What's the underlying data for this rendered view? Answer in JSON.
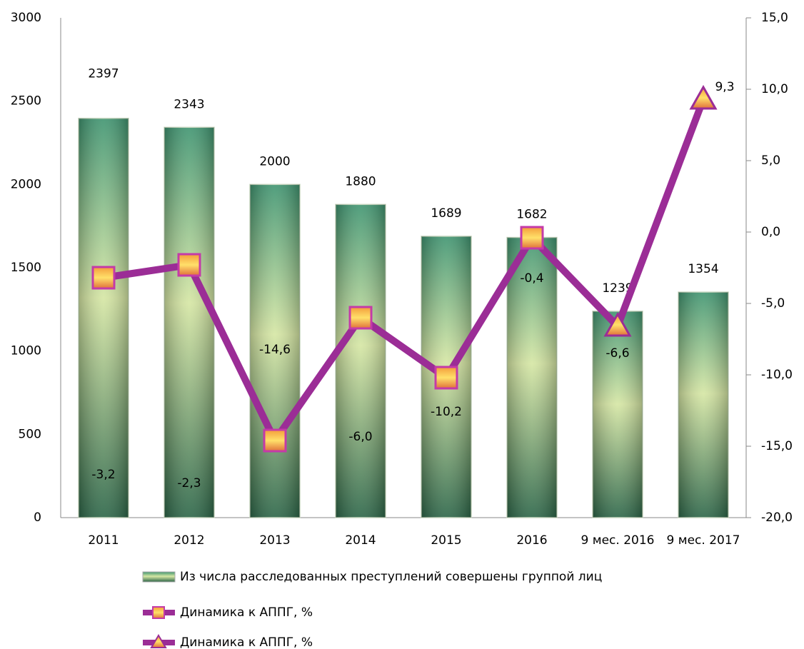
{
  "chart_data": {
    "type": "bar",
    "categories": [
      "2011",
      "2012",
      "2013",
      "2014",
      "2015",
      "2016",
      "9 мес. 2016",
      "9 мес. 2017"
    ],
    "series": [
      {
        "name": "Из числа расследованных преступлений совершены группой лиц",
        "type": "bar",
        "color": "#3e9a6e",
        "values": [
          2397,
          2343,
          2000,
          1880,
          1689,
          1682,
          1239,
          1354
        ]
      },
      {
        "name": "Динамика к АППГ, %",
        "type": "line",
        "axis": "y2",
        "marker": "square",
        "color": "#9b2d96",
        "values": [
          -3.2,
          -2.3,
          -14.6,
          -6.0,
          -10.2,
          -0.4,
          null,
          null
        ],
        "value_labels": [
          "-3,2",
          "-2,3",
          "-14,6",
          "-6,0",
          "-10,2",
          "-0,4",
          null,
          null
        ]
      },
      {
        "name": "Динамика к АППГ, %",
        "type": "line",
        "axis": "y2",
        "marker": "triangle",
        "color": "#9b2d96",
        "values": [
          null,
          null,
          null,
          null,
          null,
          null,
          -6.6,
          9.3
        ],
        "value_labels": [
          null,
          null,
          null,
          null,
          null,
          null,
          "-6,6",
          "9,3"
        ]
      }
    ],
    "ylim": [
      0,
      3000
    ],
    "yticks": [
      0,
      500,
      1000,
      1500,
      2000,
      2500,
      3000
    ],
    "y2lim": [
      -20,
      15
    ],
    "y2ticks": [
      {
        "value": -20,
        "label": "-20,0"
      },
      {
        "value": -15,
        "label": "-15,0"
      },
      {
        "value": -10,
        "label": "-10,0"
      },
      {
        "value": -5,
        "label": "-5,0"
      },
      {
        "value": 0,
        "label": "0,0"
      },
      {
        "value": 5,
        "label": "5,0"
      },
      {
        "value": 10,
        "label": "10,0"
      },
      {
        "value": 15,
        "label": "15,0"
      }
    ],
    "grid": false
  }
}
